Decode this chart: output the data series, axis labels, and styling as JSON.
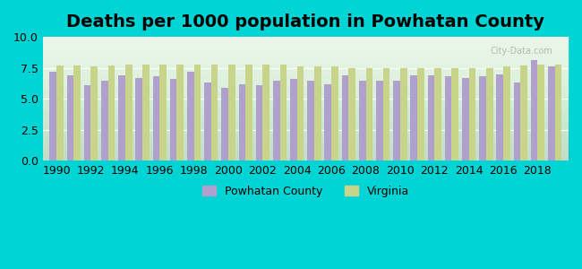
{
  "title": "Deaths per 1000 population in Powhatan County",
  "years": [
    1990,
    1991,
    1992,
    1993,
    1994,
    1995,
    1996,
    1997,
    1998,
    1999,
    2000,
    2001,
    2002,
    2003,
    2004,
    2005,
    2006,
    2007,
    2008,
    2009,
    2010,
    2011,
    2012,
    2013,
    2014,
    2015,
    2016,
    2017,
    2018,
    2019
  ],
  "powhatan": [
    7.2,
    6.9,
    6.1,
    6.5,
    6.9,
    6.7,
    6.8,
    6.6,
    7.2,
    6.3,
    5.9,
    6.2,
    6.1,
    6.5,
    6.6,
    6.5,
    6.2,
    6.9,
    6.5,
    6.5,
    6.5,
    6.9,
    6.9,
    6.8,
    6.7,
    6.8,
    7.0,
    6.3,
    8.1,
    7.6
  ],
  "virginia": [
    7.7,
    7.7,
    7.6,
    7.7,
    7.8,
    7.8,
    7.8,
    7.8,
    7.8,
    7.8,
    7.8,
    7.8,
    7.8,
    7.8,
    7.6,
    7.6,
    7.6,
    7.5,
    7.5,
    7.5,
    7.5,
    7.5,
    7.5,
    7.5,
    7.5,
    7.5,
    7.6,
    7.7,
    7.8,
    7.8
  ],
  "powhatan_color": "#b0a0cc",
  "virginia_color": "#c8d48a",
  "background_color": "#00d4d4",
  "plot_bg_top": "#e8f5e8",
  "plot_bg_bottom": "#ffffff",
  "ylim": [
    0,
    10
  ],
  "yticks": [
    0,
    2.5,
    5,
    7.5,
    10
  ],
  "xlabel_fontsize": 10,
  "title_fontsize": 14,
  "legend_labels": [
    "Powhatan County",
    "Virginia"
  ]
}
